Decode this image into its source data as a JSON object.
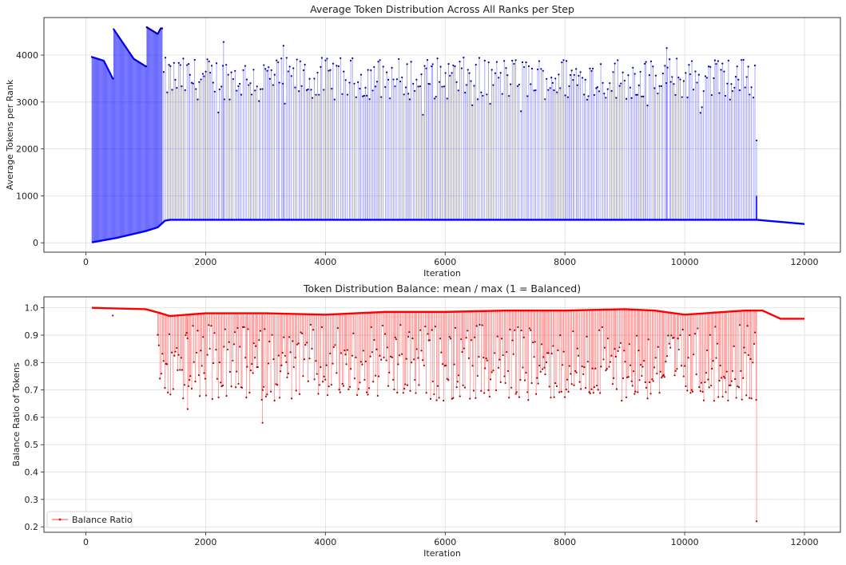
{
  "chart_data": [
    {
      "type": "line",
      "title": "Average Token Distribution Across All Ranks per Step",
      "xlabel": "Iteration",
      "ylabel": "Average Tokens per Rank",
      "xlim": [
        -700,
        12600
      ],
      "ylim": [
        -200,
        4800
      ],
      "xticks": [
        0,
        2000,
        4000,
        6000,
        8000,
        10000,
        12000
      ],
      "yticks": [
        0,
        1000,
        2000,
        3000,
        4000
      ],
      "grid": true,
      "legend": null,
      "series": [
        {
          "color": "#0000ff",
          "marker": "dot",
          "baseline": [
            [
              100,
              10
            ],
            [
              500,
              100
            ],
            [
              1000,
              250
            ],
            [
              1200,
              330
            ],
            [
              1260,
              400
            ],
            [
              1320,
              470
            ],
            [
              1400,
              490
            ],
            [
              11200,
              490
            ],
            [
              12000,
              400
            ]
          ],
          "upper_envelope": [
            [
              100,
              3960
            ],
            [
              300,
              3880
            ],
            [
              450,
              3500
            ],
            [
              460,
              4560
            ],
            [
              800,
              3920
            ],
            [
              1000,
              3760
            ],
            [
              1010,
              4600
            ],
            [
              1200,
              4450
            ],
            [
              1250,
              4570
            ]
          ],
          "spike_range_x": [
            1300,
            11200
          ],
          "spike_range_y": [
            2500,
            4280
          ],
          "notable_spikes": [
            [
              2300,
              4280
            ],
            [
              3300,
              4200
            ],
            [
              9700,
              4150
            ],
            [
              11200,
              2180
            ]
          ]
        }
      ]
    },
    {
      "type": "line",
      "title": "Token Distribution Balance: mean / max (1 = Balanced)",
      "xlabel": "Iteration",
      "ylabel": "Balance Ratio of Tokens",
      "xlim": [
        -700,
        12600
      ],
      "ylim": [
        0.18,
        1.04
      ],
      "xticks": [
        0,
        2000,
        4000,
        6000,
        8000,
        10000,
        12000
      ],
      "yticks": [
        0.2,
        0.3,
        0.4,
        0.5,
        0.6,
        0.7,
        0.8,
        0.9,
        1.0
      ],
      "grid": true,
      "legend": "bottom-left",
      "series": [
        {
          "name": "Balance Ratio",
          "color": "#ff0000",
          "marker": "dot",
          "upper": [
            [
              100,
              1.0
            ],
            [
              1000,
              0.995
            ],
            [
              1250,
              0.98
            ],
            [
              1400,
              0.97
            ],
            [
              2000,
              0.98
            ],
            [
              3000,
              0.98
            ],
            [
              4000,
              0.975
            ],
            [
              5000,
              0.985
            ],
            [
              6000,
              0.985
            ],
            [
              7000,
              0.99
            ],
            [
              8000,
              0.99
            ],
            [
              9000,
              0.995
            ],
            [
              9500,
              0.99
            ],
            [
              10000,
              0.975
            ],
            [
              11000,
              0.99
            ],
            [
              11200,
              0.99
            ],
            [
              11300,
              0.99
            ],
            [
              11600,
              0.96
            ],
            [
              12000,
              0.96
            ]
          ],
          "dip_range_x": [
            1200,
            11200
          ],
          "dip_range_y": [
            0.58,
            0.95
          ],
          "notable_dips": [
            [
              1700,
              0.63
            ],
            [
              2950,
              0.58
            ],
            [
              11200,
              0.22
            ]
          ]
        }
      ]
    }
  ]
}
